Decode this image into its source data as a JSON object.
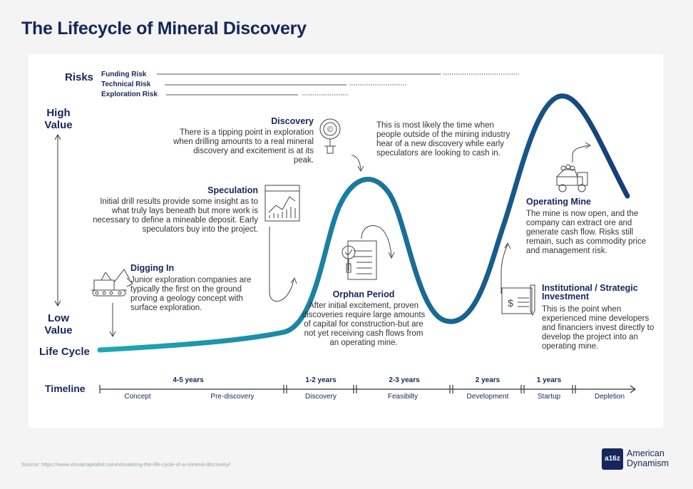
{
  "title": "The Lifecycle of Mineral Discovery",
  "risks": {
    "label": "Risks",
    "items": [
      {
        "name": "Funding Risk"
      },
      {
        "name": "Technical Risk"
      },
      {
        "name": "Exploration Risk"
      }
    ]
  },
  "value_axis": {
    "high": "High Value",
    "low": "Low Value",
    "cycle": "Life Cycle"
  },
  "stages": {
    "digging_in": {
      "title": "Digging In",
      "text": "Junior exploration companies are typically the first on the ground proving a geology concept with surface exploration."
    },
    "speculation": {
      "title": "Speculation",
      "text": "Initial drill results provide some insight as to what truly lays beneath but more work is necessary to define a mineable deposit. Early speculators buy into the project."
    },
    "discovery": {
      "title": "Discovery",
      "text": "There is a tipping point in exploration when drilling amounts to a real mineral discovery and excitement is at its peak."
    },
    "discovery_note": "This is most likely the time when people outside of the mining industry hear of a new discovery while early speculators are looking to cash in.",
    "orphan": {
      "title": "Orphan Period",
      "text": "After initial excitement, proven discoveries require large amounts of capital for construction-but are not yet receiving cash flows from an operating mine."
    },
    "institutional": {
      "title": "Institutional / Strategic Investment",
      "text": "This is the point when experienced mine developers and financiers invest directly to develop the project into an operating mine."
    },
    "operating": {
      "title": "Operating Mine",
      "text": "The mine is now open, and the company can extract ore and generate cash flow. Risks still remain, such as commodity price and management risk."
    }
  },
  "timeline": {
    "label": "Timeline",
    "durations": [
      "4-5 years",
      "1-2 years",
      "2-3 years",
      "2 years",
      "1 years"
    ],
    "phases": [
      "Concept",
      "Pre-discovery",
      "Discovery",
      "Feasibilty",
      "Development",
      "Startup",
      "Depletion"
    ]
  },
  "source": "Source: https://www.visualcapitalist.com/visualizing-the-life-cycle-of-a-mineral-discovery/",
  "brand": {
    "mark": "a16z",
    "line1": "American",
    "line2": "Dynamism"
  },
  "colors": {
    "navy": "#16265a",
    "teal": "#1a8fa6",
    "curve_dark": "#1a3f7a"
  }
}
